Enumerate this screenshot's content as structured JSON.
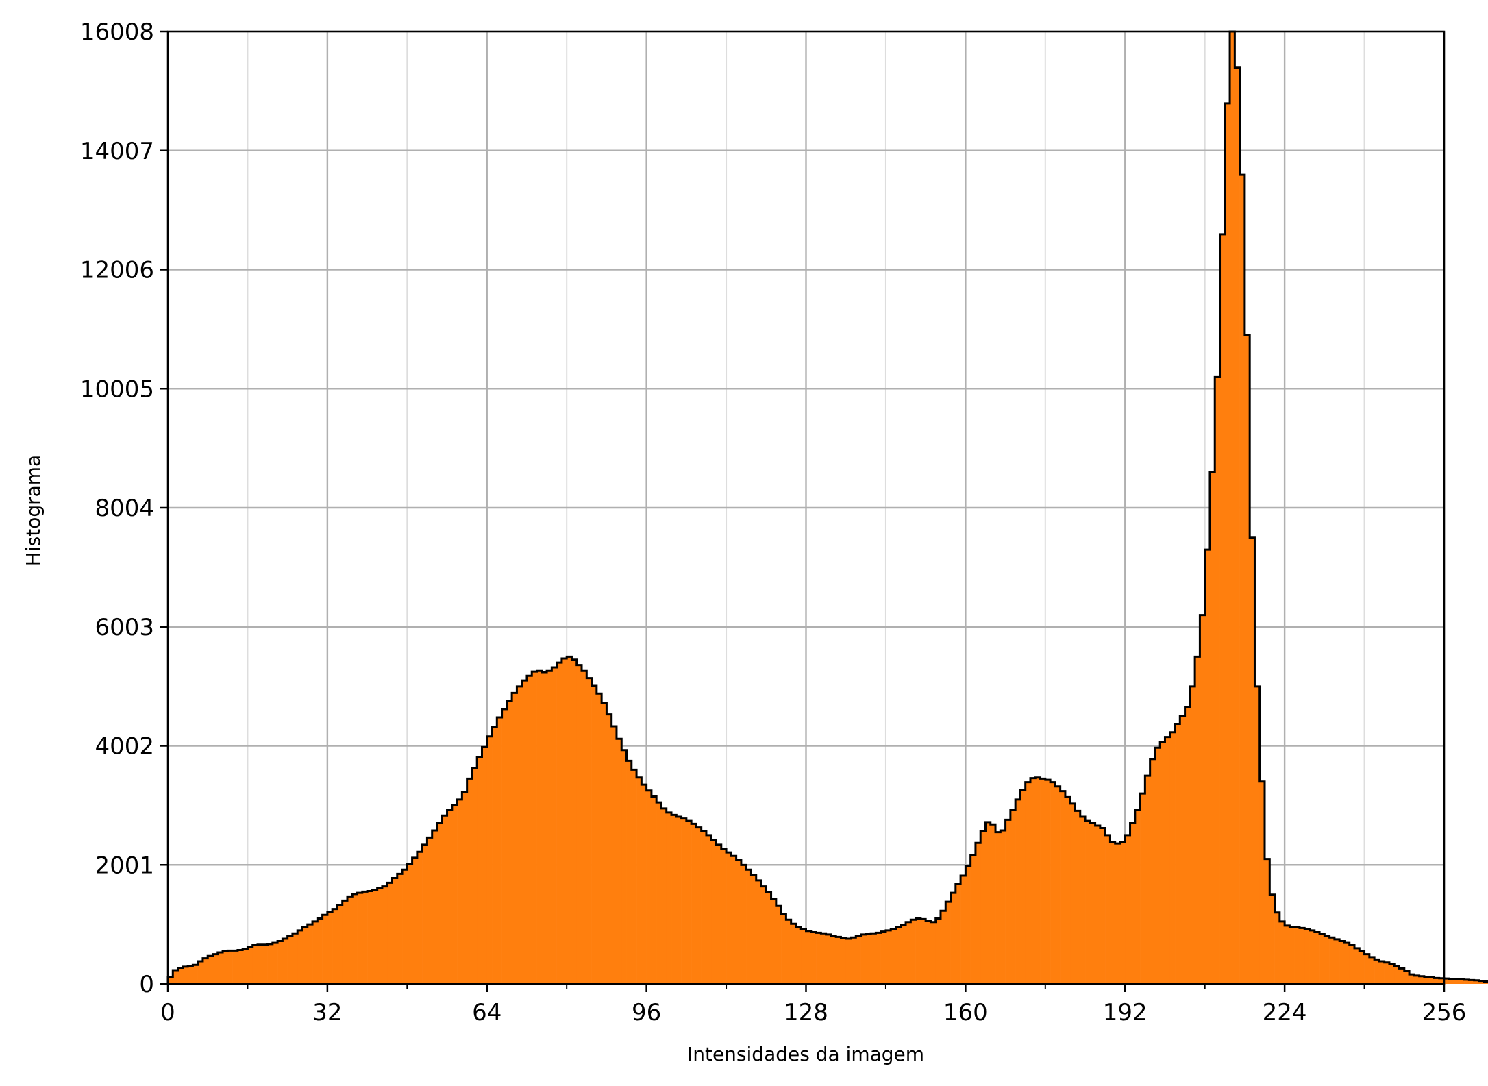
{
  "chart_data": {
    "type": "bar",
    "style": "histogram-step",
    "xlabel": "Intensidades da imagem",
    "ylabel": "Histograma",
    "xlim": [
      0,
      256
    ],
    "ylim": [
      0,
      16008
    ],
    "xticks": [
      "0",
      "32",
      "64",
      "96",
      "128",
      "160",
      "192",
      "224",
      "256"
    ],
    "yticks": [
      "0",
      "2001",
      "4002",
      "6003",
      "8004",
      "10005",
      "12006",
      "14007",
      "16008"
    ],
    "grid": true,
    "minor_x_grid": true,
    "fill_color": "#ff7f0e",
    "edge_color": "#000000",
    "values": [
      120,
      230,
      270,
      290,
      300,
      320,
      380,
      430,
      470,
      500,
      530,
      550,
      560,
      560,
      570,
      590,
      620,
      650,
      660,
      660,
      670,
      690,
      720,
      760,
      800,
      850,
      900,
      950,
      1000,
      1050,
      1100,
      1160,
      1210,
      1260,
      1330,
      1400,
      1470,
      1510,
      1530,
      1550,
      1560,
      1580,
      1610,
      1640,
      1700,
      1780,
      1850,
      1920,
      2020,
      2120,
      2220,
      2340,
      2460,
      2580,
      2700,
      2830,
      2920,
      3000,
      3100,
      3230,
      3450,
      3630,
      3810,
      3980,
      4160,
      4320,
      4480,
      4620,
      4760,
      4890,
      5000,
      5100,
      5180,
      5250,
      5260,
      5240,
      5260,
      5320,
      5400,
      5470,
      5500,
      5450,
      5360,
      5260,
      5140,
      5010,
      4880,
      4720,
      4530,
      4330,
      4120,
      3930,
      3750,
      3600,
      3470,
      3350,
      3250,
      3150,
      3050,
      2950,
      2880,
      2840,
      2810,
      2780,
      2740,
      2690,
      2630,
      2570,
      2500,
      2420,
      2340,
      2270,
      2210,
      2150,
      2080,
      2000,
      1920,
      1830,
      1740,
      1640,
      1540,
      1430,
      1310,
      1180,
      1080,
      1010,
      960,
      920,
      890,
      870,
      860,
      850,
      830,
      810,
      790,
      770,
      760,
      780,
      810,
      830,
      840,
      850,
      860,
      880,
      900,
      920,
      950,
      990,
      1040,
      1080,
      1100,
      1090,
      1060,
      1040,
      1100,
      1230,
      1380,
      1530,
      1680,
      1820,
      1980,
      2170,
      2370,
      2570,
      2720,
      2680,
      2550,
      2580,
      2760,
      2930,
      3100,
      3260,
      3390,
      3460,
      3470,
      3450,
      3430,
      3390,
      3320,
      3240,
      3140,
      3030,
      2910,
      2810,
      2740,
      2700,
      2660,
      2620,
      2500,
      2380,
      2360,
      2380,
      2500,
      2700,
      2930,
      3200,
      3500,
      3780,
      3970,
      4070,
      4150,
      4230,
      4370,
      4500,
      4650,
      5000,
      5500,
      6200,
      7300,
      8600,
      10200,
      12600,
      14800,
      16008,
      15400,
      13600,
      10900,
      7500,
      5000,
      3400,
      2100,
      1500,
      1200,
      1050,
      980,
      960,
      950,
      940,
      920,
      900,
      870,
      840,
      810,
      780,
      750,
      720,
      690,
      650,
      600,
      550,
      500,
      450,
      410,
      380,
      360,
      330,
      300,
      260,
      220,
      160,
      140,
      130,
      120,
      110,
      100,
      95,
      90,
      85,
      80,
      75,
      70,
      65,
      60,
      50,
      40,
      30,
      20,
      10
    ]
  }
}
